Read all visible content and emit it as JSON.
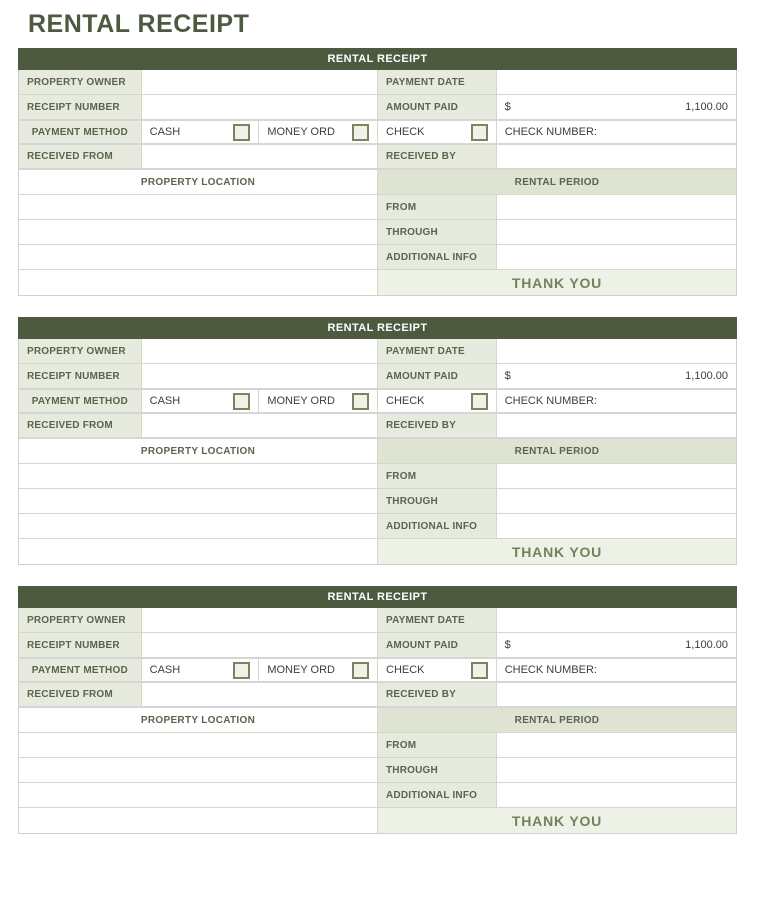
{
  "page_title": "RENTAL RECEIPT",
  "receipt_count": 3,
  "colors": {
    "accent_dark_green": "#4e5a40",
    "label_background": "#e7ebdd",
    "section_header_background": "#dee4d1",
    "thank_you_background": "#eef1e5",
    "thank_you_text": "#75815c",
    "checkbox_border": "#7b8363"
  },
  "receipt": {
    "header": "RENTAL RECEIPT",
    "fields": {
      "property_owner": "PROPERTY OWNER",
      "payment_date": "PAYMENT DATE",
      "receipt_number": "RECEIPT NUMBER",
      "amount_paid": "AMOUNT PAID",
      "currency_symbol": "$",
      "amount_value": "1,100.00",
      "payment_method": "PAYMENT METHOD",
      "cash": "CASH",
      "money_order": "MONEY ORD",
      "check": "CHECK",
      "check_number": "CHECK NUMBER:",
      "received_from": "RECEIVED FROM",
      "received_by": "RECEIVED BY",
      "property_location": "PROPERTY LOCATION",
      "rental_period": "RENTAL PERIOD",
      "from": "FROM",
      "through": "THROUGH",
      "additional_info": "ADDITIONAL INFO",
      "thank_you": "THANK YOU"
    },
    "values": {
      "property_owner": "",
      "payment_date": "",
      "receipt_number": "",
      "received_from": "",
      "received_by": "",
      "check_number": "",
      "from": "",
      "through": "",
      "additional_info": "",
      "property_location_lines": [
        "",
        "",
        "",
        ""
      ],
      "cash_checked": false,
      "money_order_checked": false,
      "check_checked": false
    }
  }
}
